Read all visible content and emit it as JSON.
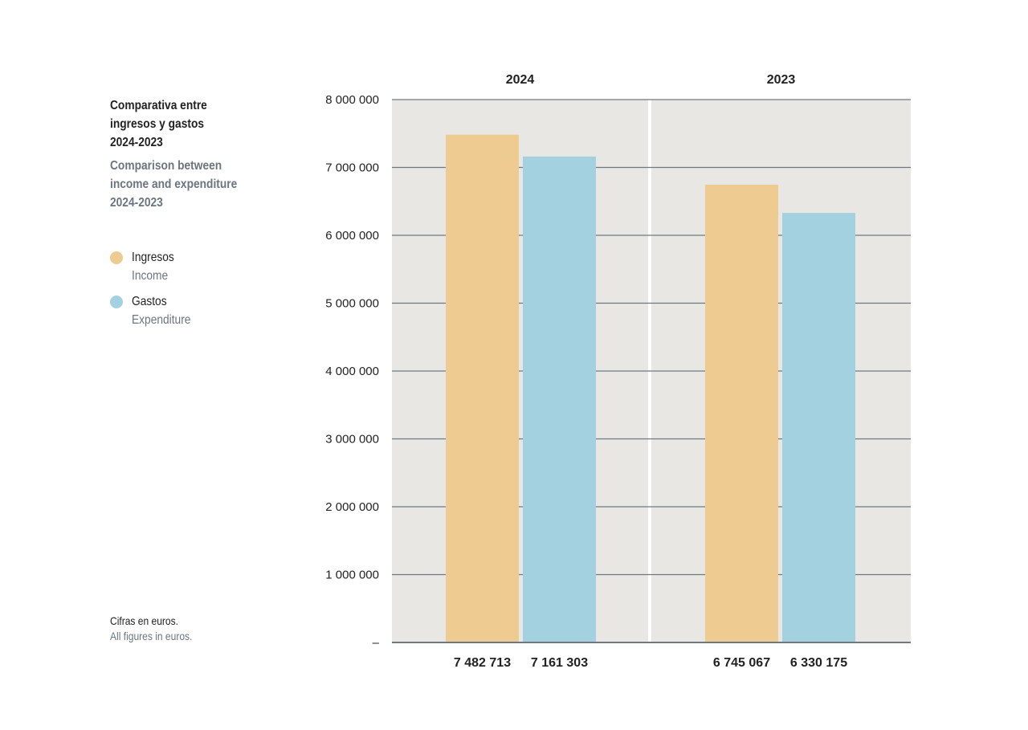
{
  "header": {
    "title_es": "Comparativa entre\ningresos y gastos\n2024-2023",
    "title_en": "Comparison between\nincome and expenditure\n2024-2023"
  },
  "legend": [
    {
      "label": "Ingresos",
      "sublabel": "Income",
      "color": "#edcb91"
    },
    {
      "label": "Gastos",
      "sublabel": "Expenditure",
      "color": "#a4d1e0"
    }
  ],
  "footnote": {
    "es": "Cifras en euros.",
    "en": "All figures in euros."
  },
  "colors": {
    "panel_bg": "#e9e7e3",
    "gridline": "#6d7884",
    "axis": "#6d7884"
  },
  "chart_data": {
    "type": "bar",
    "ylim": [
      0,
      8000000
    ],
    "y_ticks": [
      0,
      1000000,
      2000000,
      3000000,
      4000000,
      5000000,
      6000000,
      7000000,
      8000000
    ],
    "y_tick_labels": [
      "–",
      "1 000 000",
      "2 000 000",
      "3 000 000",
      "4 000 000",
      "5 000 000",
      "6 000 000",
      "7 000 000",
      "8 000 000"
    ],
    "grid": true,
    "panels": [
      {
        "category": "2024",
        "series": [
          {
            "name": "Ingresos",
            "value": 7482713,
            "label": "7 482 713"
          },
          {
            "name": "Gastos",
            "value": 7161303,
            "label": "7 161 303"
          }
        ]
      },
      {
        "category": "2023",
        "series": [
          {
            "name": "Ingresos",
            "value": 6745067,
            "label": "6 745 067"
          },
          {
            "name": "Gastos",
            "value": 6330175,
            "label": "6 330 175"
          }
        ]
      }
    ]
  }
}
